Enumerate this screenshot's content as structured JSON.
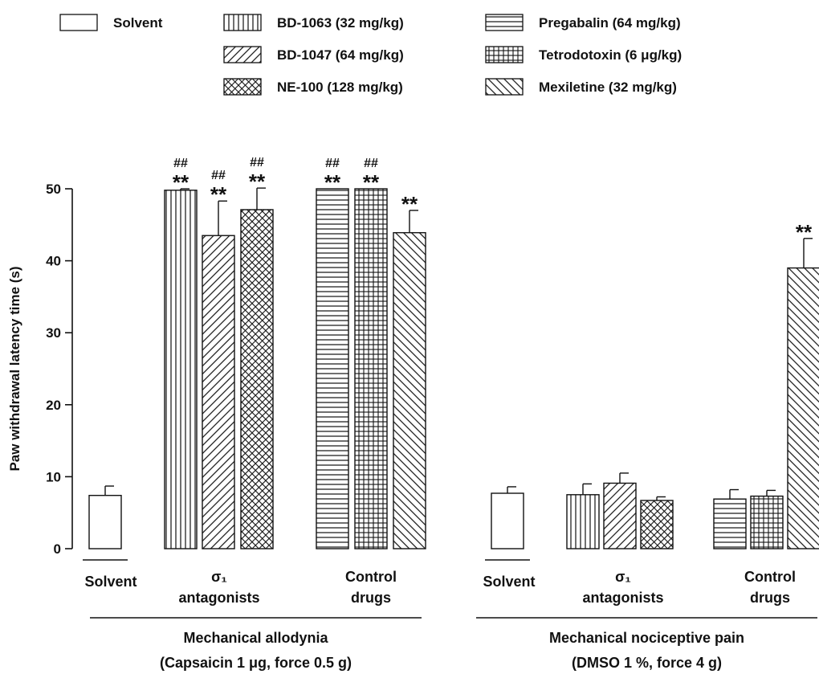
{
  "legend": [
    {
      "label": "Solvent",
      "pattern": "none"
    },
    {
      "label": "BD-1063 (32 mg/kg)",
      "pattern": "vertical"
    },
    {
      "label": "BD-1047 (64 mg/kg)",
      "pattern": "diag-right"
    },
    {
      "label": "NE-100 (128 mg/kg)",
      "pattern": "crosshatch-diag"
    },
    {
      "label": "Pregabalin (64 mg/kg)",
      "pattern": "horizontal"
    },
    {
      "label": "Tetrodotoxin (6 μg/kg)",
      "pattern": "grid"
    },
    {
      "label": "Mexiletine (32 mg/kg)",
      "pattern": "diag-left"
    }
  ],
  "chart_data": {
    "type": "bar",
    "ylabel": "Paw withdrawal latency time (s)",
    "ylim": [
      0,
      50
    ],
    "yticks": [
      0,
      10,
      20,
      30,
      40,
      50
    ],
    "panels": [
      {
        "title": "Mechanical allodynia",
        "subtitle": "(Capsaicin 1 μg, force 0.5 g)",
        "groups": [
          {
            "label_lines": [
              "Solvent"
            ],
            "bars": [
              {
                "series": "Solvent",
                "pattern": "none",
                "value": 7.4,
                "error": 1.3,
                "marks": []
              }
            ]
          },
          {
            "label_lines": [
              "σ₁",
              "antagonists"
            ],
            "bars": [
              {
                "series": "BD-1063 (32 mg/kg)",
                "pattern": "vertical",
                "value": 49.8,
                "error": 0.2,
                "marks": [
                  "##",
                  "**"
                ]
              },
              {
                "series": "BD-1047 (64 mg/kg)",
                "pattern": "diag-right",
                "value": 43.5,
                "error": 4.8,
                "marks": [
                  "##",
                  "**"
                ]
              },
              {
                "series": "NE-100 (128 mg/kg)",
                "pattern": "crosshatch-diag",
                "value": 47.1,
                "error": 3.0,
                "marks": [
                  "##",
                  "**"
                ]
              }
            ]
          },
          {
            "label_lines": [
              "Control",
              "drugs"
            ],
            "bars": [
              {
                "series": "Pregabalin (64 mg/kg)",
                "pattern": "horizontal",
                "value": 50.0,
                "error": 0,
                "marks": [
                  "##",
                  "**"
                ]
              },
              {
                "series": "Tetrodotoxin (6 μg/kg)",
                "pattern": "grid",
                "value": 50.0,
                "error": 0,
                "marks": [
                  "##",
                  "**"
                ]
              },
              {
                "series": "Mexiletine (32 mg/kg)",
                "pattern": "diag-left",
                "value": 43.9,
                "error": 3.1,
                "marks": [
                  "**"
                ]
              }
            ]
          }
        ]
      },
      {
        "title": "Mechanical nociceptive pain",
        "subtitle": "(DMSO 1 %, force 4 g)",
        "groups": [
          {
            "label_lines": [
              "Solvent"
            ],
            "bars": [
              {
                "series": "Solvent",
                "pattern": "none",
                "value": 7.7,
                "error": 0.9,
                "marks": []
              }
            ]
          },
          {
            "label_lines": [
              "σ₁",
              "antagonists"
            ],
            "bars": [
              {
                "series": "BD-1063 (32 mg/kg)",
                "pattern": "vertical",
                "value": 7.5,
                "error": 1.5,
                "marks": []
              },
              {
                "series": "BD-1047 (64 mg/kg)",
                "pattern": "diag-right",
                "value": 9.1,
                "error": 1.4,
                "marks": []
              },
              {
                "series": "NE-100 (128 mg/kg)",
                "pattern": "crosshatch-diag",
                "value": 6.7,
                "error": 0.5,
                "marks": []
              }
            ]
          },
          {
            "label_lines": [
              "Control",
              "drugs"
            ],
            "bars": [
              {
                "series": "Pregabalin (64 mg/kg)",
                "pattern": "horizontal",
                "value": 6.9,
                "error": 1.3,
                "marks": []
              },
              {
                "series": "Tetrodotoxin (6 μg/kg)",
                "pattern": "grid",
                "value": 7.3,
                "error": 0.8,
                "marks": []
              },
              {
                "series": "Mexiletine (32 mg/kg)",
                "pattern": "diag-left",
                "value": 39.0,
                "error": 4.1,
                "marks": [
                  "**"
                ]
              }
            ]
          }
        ]
      }
    ]
  }
}
